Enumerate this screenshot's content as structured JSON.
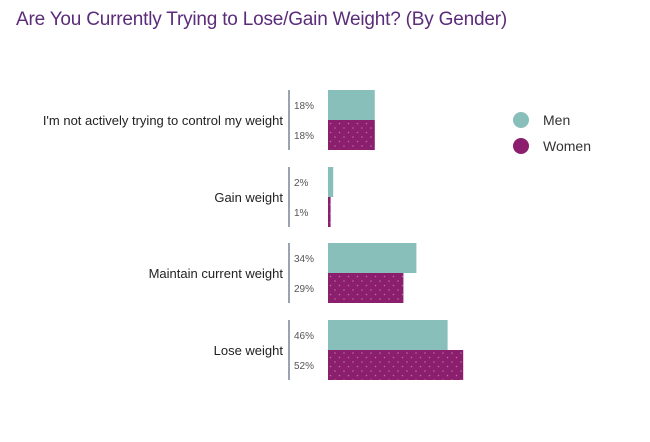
{
  "chart_data": {
    "type": "bar",
    "orientation": "horizontal",
    "title": "Are You Currently Trying to Lose/Gain Weight? (By Gender)",
    "categories": [
      "I'm not actively trying to control my weight",
      "Gain weight",
      "Maintain current weight",
      "Lose weight"
    ],
    "series": [
      {
        "name": "Men",
        "values": [
          18,
          2,
          34,
          46
        ],
        "labels": [
          "18%",
          "2%",
          "34%",
          "46%"
        ],
        "color": "#88bfba"
      },
      {
        "name": "Women",
        "values": [
          18,
          1,
          29,
          52
        ],
        "labels": [
          "18%",
          "1%",
          "29%",
          "52%"
        ],
        "color": "#8b1f6e"
      }
    ],
    "xlim": [
      0,
      100
    ],
    "legend_position": "right",
    "grid": false
  }
}
